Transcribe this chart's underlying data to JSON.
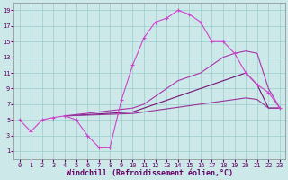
{
  "background_color": "#cce8e8",
  "grid_color": "#99cccc",
  "xlim": [
    -0.5,
    23.5
  ],
  "ylim": [
    0,
    20
  ],
  "xticks": [
    0,
    1,
    2,
    3,
    4,
    5,
    6,
    7,
    8,
    9,
    10,
    11,
    12,
    13,
    14,
    15,
    16,
    17,
    18,
    19,
    20,
    21,
    22,
    23
  ],
  "yticks": [
    1,
    3,
    5,
    7,
    9,
    11,
    13,
    15,
    17,
    19
  ],
  "xlabel": "Windchill (Refroidissement éolien,°C)",
  "line1_x": [
    0,
    1,
    2,
    3,
    4,
    5,
    6,
    7,
    8,
    9,
    10,
    11,
    12,
    13,
    14,
    15,
    16,
    17,
    18,
    19,
    20,
    21,
    22,
    23
  ],
  "line1_y": [
    5,
    3.5,
    5,
    5.3,
    5.5,
    5,
    3,
    1.5,
    1.5,
    7.5,
    12,
    15.5,
    17.5,
    18,
    19,
    18.5,
    17.5,
    15,
    15,
    13.5,
    11,
    9.5,
    8.5,
    6.5
  ],
  "line2_x": [
    4,
    10,
    11,
    12,
    13,
    14,
    15,
    16,
    17,
    18,
    19,
    20,
    21,
    22,
    23
  ],
  "line2_y": [
    5.5,
    6,
    6.5,
    7,
    7.5,
    8,
    8.5,
    9,
    9.5,
    10,
    10.5,
    11,
    9.5,
    6.5,
    6.5
  ],
  "line3_x": [
    4,
    10,
    11,
    12,
    13,
    14,
    15,
    16,
    17,
    18,
    19,
    20,
    21,
    22,
    23
  ],
  "line3_y": [
    5.5,
    6.5,
    7,
    8,
    9,
    10,
    10.5,
    11,
    12,
    13,
    13.5,
    13.8,
    13.5,
    9,
    6.5
  ],
  "line4_x": [
    4,
    10,
    11,
    12,
    13,
    14,
    15,
    16,
    17,
    18,
    19,
    20,
    21,
    22,
    23
  ],
  "line4_y": [
    5.5,
    5.8,
    6,
    6.2,
    6.4,
    6.6,
    6.8,
    7,
    7.2,
    7.4,
    7.6,
    7.8,
    7.6,
    6.5,
    6.5
  ],
  "line_color_1": "#cc44cc",
  "line_color_2": "#993399",
  "line_color_3": "#aa33aa",
  "line_color_4": "#771177",
  "tick_fontsize": 5,
  "label_fontsize": 6
}
